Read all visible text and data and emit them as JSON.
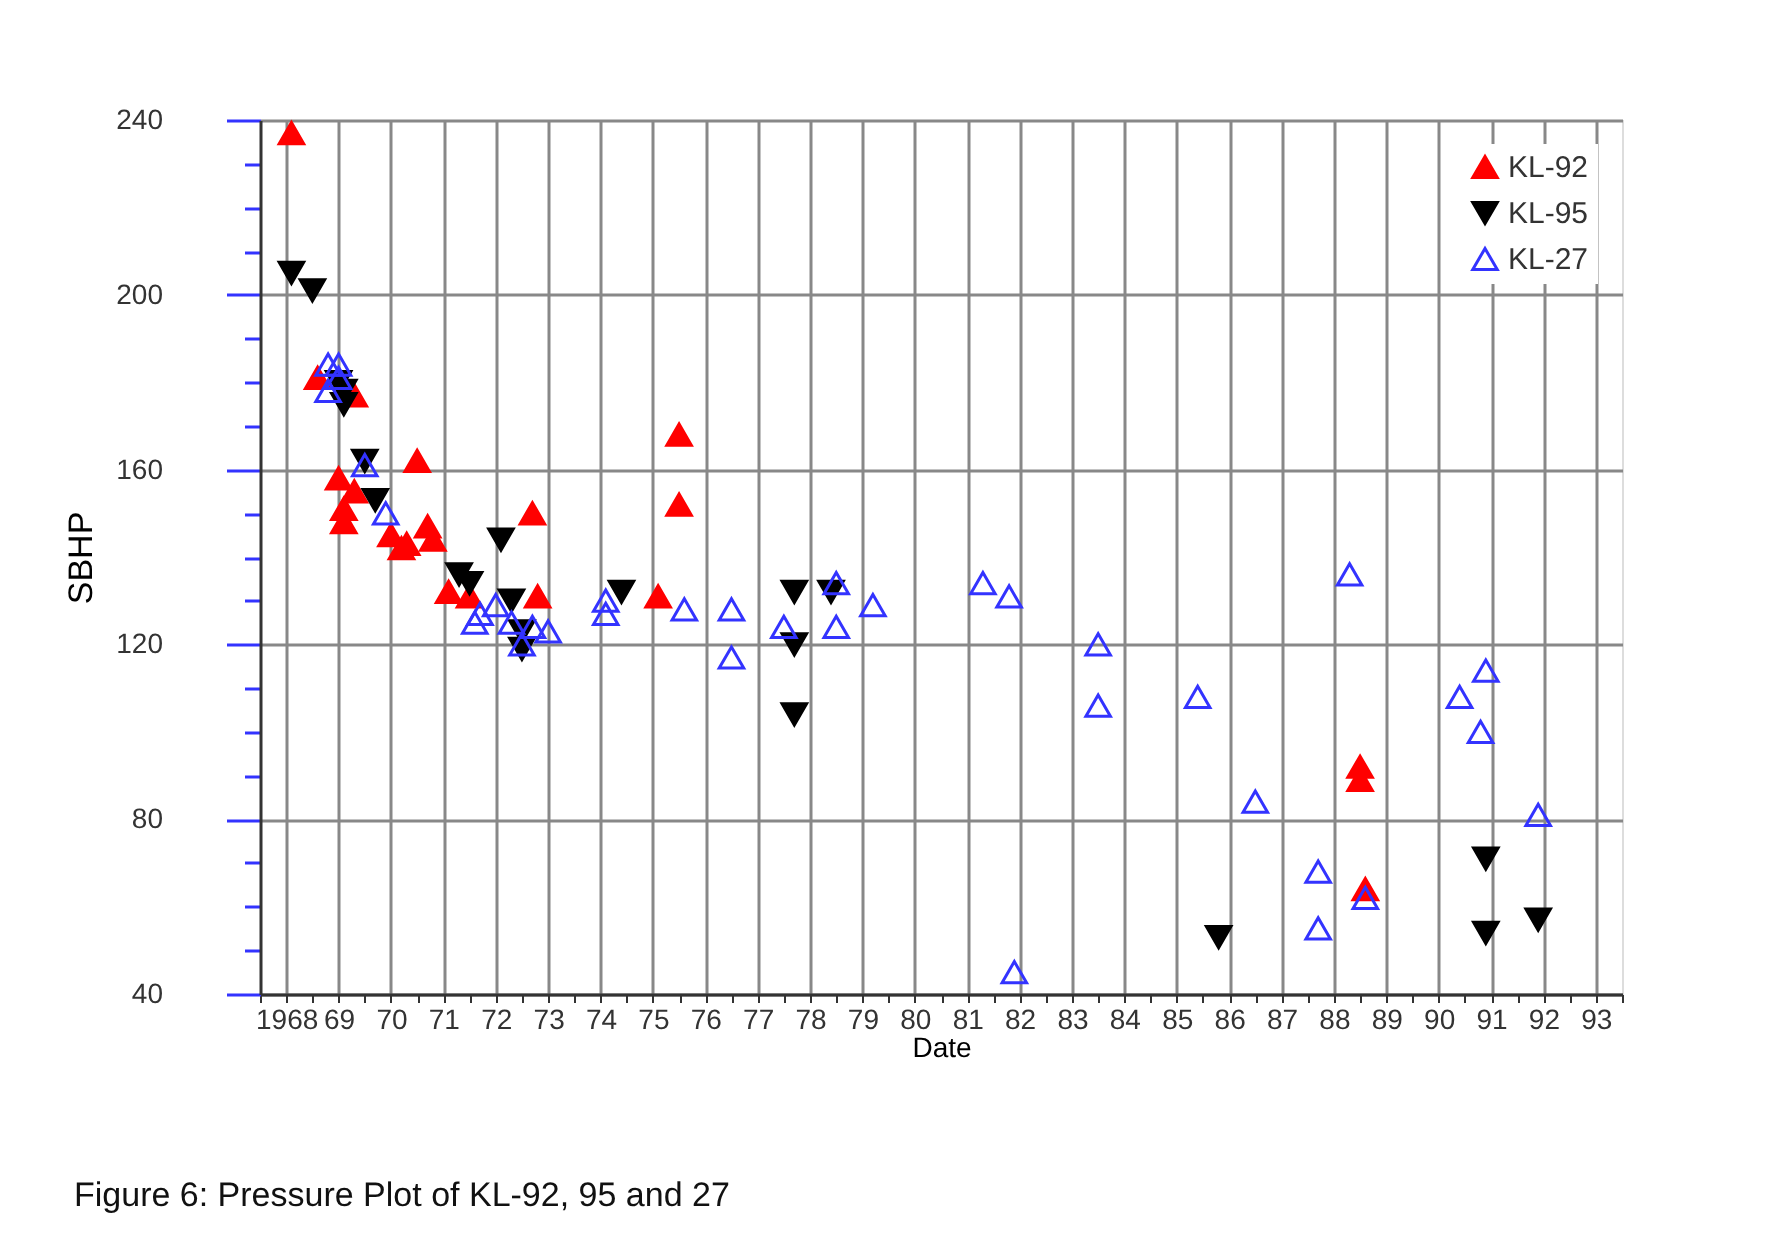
{
  "chart_data": {
    "type": "scatter",
    "xlabel": "Date",
    "ylabel": "SBHP",
    "annotations": [
      "Figure 6: Pressure Plot of KL-92, 95 and 27"
    ],
    "xlim": [
      1967.5,
      1993.5
    ],
    "xticks": [
      {
        "value": 1967.5,
        "label": null
      },
      1968,
      {
        "value": 1968.5,
        "label": null
      },
      {
        "value": 1969,
        "label": "69"
      },
      {
        "value": 1969.5,
        "label": null
      },
      {
        "value": 1970,
        "label": "70"
      },
      {
        "value": 1970.5,
        "label": null
      },
      {
        "value": 1971,
        "label": "71"
      },
      {
        "value": 1971.5,
        "label": null
      },
      {
        "value": 1972,
        "label": "72"
      },
      {
        "value": 1972.5,
        "label": null
      },
      {
        "value": 1973,
        "label": "73"
      },
      {
        "value": 1973.5,
        "label": null
      },
      {
        "value": 1974,
        "label": "74"
      },
      {
        "value": 1974.5,
        "label": null
      },
      {
        "value": 1975,
        "label": "75"
      },
      {
        "value": 1975.5,
        "label": null
      },
      {
        "value": 1976,
        "label": "76"
      },
      {
        "value": 1976.5,
        "label": null
      },
      {
        "value": 1977,
        "label": "77"
      },
      {
        "value": 1977.5,
        "label": null
      },
      {
        "value": 1978,
        "label": "78"
      },
      {
        "value": 1978.5,
        "label": null
      },
      {
        "value": 1979,
        "label": "79"
      },
      {
        "value": 1979.5,
        "label": null
      },
      {
        "value": 1980,
        "label": "80"
      },
      {
        "value": 1980.5,
        "label": null
      },
      {
        "value": 1981,
        "label": "81"
      },
      {
        "value": 1981.5,
        "label": null
      },
      {
        "value": 1982,
        "label": "82"
      },
      {
        "value": 1982.5,
        "label": null
      },
      {
        "value": 1983,
        "label": "83"
      },
      {
        "value": 1983.5,
        "label": null
      },
      {
        "value": 1984,
        "label": "84"
      },
      {
        "value": 1984.5,
        "label": null
      },
      {
        "value": 1985,
        "label": "85"
      },
      {
        "value": 1985.5,
        "label": null
      },
      {
        "value": 1986,
        "label": "86"
      },
      {
        "value": 1986.5,
        "label": null
      },
      {
        "value": 1987,
        "label": "87"
      },
      {
        "value": 1987.5,
        "label": null
      },
      {
        "value": 1988,
        "label": "88"
      },
      {
        "value": 1988.5,
        "label": null
      },
      {
        "value": 1989,
        "label": "89"
      },
      {
        "value": 1989.5,
        "label": null
      },
      {
        "value": 1990,
        "label": "90"
      },
      {
        "value": 1990.5,
        "label": null
      },
      {
        "value": 1991,
        "label": "91"
      },
      {
        "value": 1991.5,
        "label": null
      },
      {
        "value": 1992,
        "label": "92"
      },
      {
        "value": 1992.5,
        "label": null
      },
      {
        "value": 1993,
        "label": "93"
      },
      {
        "value": 1993.5,
        "label": null
      }
    ],
    "ylim": [
      40,
      240
    ],
    "yticks": [
      40,
      {
        "value": 50,
        "label": null
      },
      {
        "value": 60,
        "label": null
      },
      {
        "value": 70,
        "label": null
      },
      80,
      {
        "value": 90,
        "label": null
      },
      {
        "value": 100,
        "label": null
      },
      {
        "value": 110,
        "label": null
      },
      120,
      {
        "value": 130,
        "label": null
      },
      {
        "value": 140,
        "label": null
      },
      {
        "value": 150,
        "label": null
      },
      160,
      {
        "value": 170,
        "label": null
      },
      {
        "value": 180,
        "label": null
      },
      {
        "value": 190,
        "label": null
      },
      200,
      {
        "value": 210,
        "label": null
      },
      {
        "value": 220,
        "label": null
      },
      {
        "value": 230,
        "label": null
      },
      240
    ],
    "grid": true,
    "legend": "top right",
    "series": [
      {
        "name": "KL-92",
        "color": "#ff0000",
        "marker": "triangle",
        "x": [
          1968.1,
          1968.6,
          1969.0,
          1969.1,
          1969.1,
          1969.3,
          1969.3,
          1970.5,
          1970.0,
          1970.3,
          1970.7,
          1970.8,
          1970.2,
          1971.1,
          1971.5,
          1972.7,
          1972.8,
          1975.5,
          1975.5,
          1975.1,
          1988.5,
          1988.5,
          1988.6
        ],
        "values": [
          237,
          181,
          158,
          151,
          148,
          155,
          177,
          162,
          145,
          143,
          147,
          144,
          142,
          132,
          131,
          150,
          131,
          168,
          152,
          131,
          92,
          89,
          64
        ]
      },
      {
        "name": "KL-95",
        "color": "#000000",
        "marker": "triangle-down",
        "x": [
          1968.1,
          1968.5,
          1969.0,
          1969.1,
          1969.1,
          1969.5,
          1969.7,
          1971.3,
          1971.5,
          1972.1,
          1972.3,
          1972.5,
          1972.5,
          1974.4,
          1977.7,
          1977.7,
          1978.4,
          1977.7,
          1985.8,
          1990.9,
          1990.9,
          1991.9
        ],
        "values": [
          205,
          201,
          180,
          178,
          175,
          162,
          153,
          136,
          134,
          144,
          130,
          123,
          119,
          132,
          132,
          120,
          132,
          104,
          53,
          71,
          54,
          57
        ]
      },
      {
        "name": "KL-27",
        "color": "#3333ff",
        "marker": "triangle-open",
        "x": [
          1968.8,
          1969.0,
          1969.0,
          1968.8,
          1969.5,
          1969.9,
          1971.7,
          1971.6,
          1972.0,
          1972.3,
          1972.7,
          1973.0,
          1972.5,
          1974.1,
          1974.1,
          1975.6,
          1976.5,
          1976.5,
          1977.5,
          1978.5,
          1978.5,
          1979.2,
          1981.3,
          1981.8,
          1983.5,
          1983.5,
          1985.4,
          1986.5,
          1987.7,
          1987.7,
          1988.6,
          1988.3,
          1990.4,
          1990.9,
          1990.8,
          1991.9,
          1981.9
        ],
        "values": [
          184,
          184,
          181,
          178,
          161,
          150,
          127,
          125,
          129,
          125,
          124,
          123,
          120,
          130,
          127,
          128,
          128,
          117,
          124,
          134,
          124,
          129,
          134,
          131,
          120,
          106,
          108,
          84,
          68,
          55,
          62,
          136,
          108,
          114,
          100,
          81,
          45
        ]
      }
    ]
  }
}
